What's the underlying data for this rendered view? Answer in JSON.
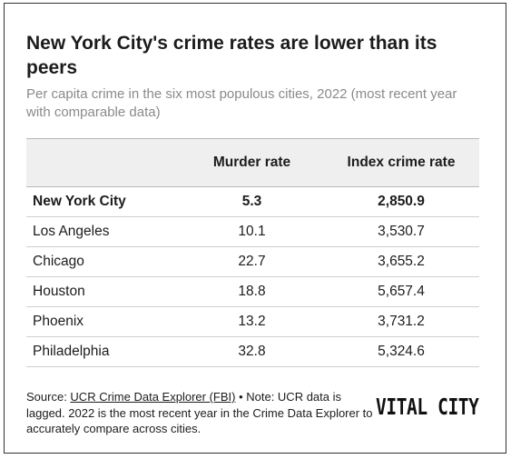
{
  "title": "New York City's crime rates are lower than its peers",
  "subtitle": "Per capita crime in the six most populous cities, 2022 (most recent year with comparable data)",
  "table": {
    "headers": [
      "",
      "Murder rate",
      "Index crime rate"
    ],
    "rows": [
      [
        "New York City",
        "5.3",
        "2,850.9"
      ],
      [
        "Los Angeles",
        "10.1",
        "3,530.7"
      ],
      [
        "Chicago",
        "22.7",
        "3,655.2"
      ],
      [
        "Houston",
        "18.8",
        "5,657.4"
      ],
      [
        "Phoenix",
        "13.2",
        "3,731.2"
      ],
      [
        "Philadelphia",
        "32.8",
        "5,324.6"
      ]
    ]
  },
  "source": {
    "prefix": "Source: ",
    "link_text": "UCR Crime Data Explorer (FBI)",
    "note": " • Note: UCR data is lagged. 2022 is the most recent year in the Crime Data Explorer to accurately compare across cities."
  },
  "logo_text": "VITAL CITY",
  "chart_data": {
    "type": "table",
    "title": "New York City's crime rates are lower than its peers",
    "subtitle": "Per capita crime in the six most populous cities, 2022 (most recent year with comparable data)",
    "columns": [
      "Murder rate",
      "Index crime rate"
    ],
    "categories": [
      "New York City",
      "Los Angeles",
      "Chicago",
      "Houston",
      "Phoenix",
      "Philadelphia"
    ],
    "series": [
      {
        "name": "Murder rate",
        "values": [
          5.3,
          10.1,
          22.7,
          18.8,
          13.2,
          32.8
        ]
      },
      {
        "name": "Index crime rate",
        "values": [
          2850.9,
          3530.7,
          3655.2,
          5657.4,
          3731.2,
          5324.6
        ]
      }
    ]
  }
}
